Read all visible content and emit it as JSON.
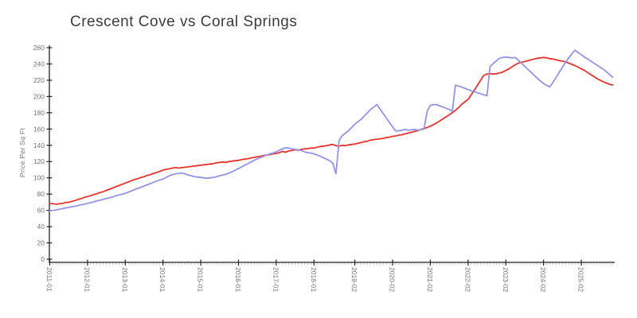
{
  "title": "Crescent Cove vs Coral Springs",
  "chart_data": {
    "type": "line",
    "title": "Crescent Cove vs Coral Springs",
    "xlabel": "",
    "ylabel": "Price Per Sq Ft",
    "ylim": [
      0,
      260
    ],
    "ytick_interval": 20,
    "ytick_labels": [
      "0",
      "20",
      "40",
      "60",
      "80",
      "100",
      "120",
      "140",
      "160",
      "180",
      "200",
      "220",
      "240",
      "260"
    ],
    "x_start": "2011-01",
    "x_frequency": "monthly",
    "n_points": 180,
    "xtick_labels": [
      "2011-01",
      "2012-01",
      "2013-01",
      "2014-01",
      "2015-01",
      "2016-01",
      "2017-01",
      "2018-01",
      "2019-02",
      "2020-02",
      "2021-02",
      "2022-02",
      "2023-02",
      "2024-02",
      "2025-02"
    ],
    "xtick_month_index": [
      0,
      12,
      24,
      36,
      48,
      60,
      72,
      84,
      97,
      109,
      121,
      133,
      145,
      157,
      169
    ],
    "grid": false,
    "legend": "none",
    "style": "xkcd-sketch",
    "axis_color": "#222222",
    "tick_label_color": "#757575",
    "series": [
      {
        "name": "Crescent Cove",
        "color": "#e8342c",
        "values": [
          68.5,
          68,
          67.5,
          68,
          68.5,
          69.5,
          70,
          71,
          72,
          73.5,
          74.5,
          76,
          77,
          78,
          79.5,
          80.5,
          82,
          83,
          84.5,
          86,
          87.5,
          89,
          90.5,
          92,
          93.5,
          95,
          96.5,
          98,
          99,
          100.5,
          101.5,
          103,
          104,
          105.5,
          106.5,
          108,
          109.5,
          110.5,
          111,
          112,
          112.5,
          112,
          112.5,
          113,
          113.5,
          114,
          114.5,
          115,
          115.5,
          116,
          116.5,
          117,
          117.5,
          118.5,
          119,
          119.5,
          119,
          120,
          120.5,
          121,
          121.5,
          122.5,
          123,
          123.5,
          124.5,
          125,
          126,
          126.5,
          127.5,
          128,
          128.5,
          129.5,
          130,
          131,
          132.5,
          131.5,
          133,
          133.5,
          134.5,
          134,
          135,
          135.5,
          136,
          136.5,
          136.5,
          137.5,
          138.5,
          139,
          139.5,
          140.5,
          141,
          139.5,
          139,
          140,
          139.5,
          140.5,
          141,
          141.5,
          142.5,
          143.5,
          144.5,
          145,
          146.5,
          147,
          147.5,
          148,
          148.5,
          149.5,
          150,
          151,
          151.5,
          152.5,
          153,
          154,
          155,
          156,
          157,
          158,
          159.5,
          160.5,
          162,
          163.5,
          165.5,
          167.5,
          170,
          172.5,
          175,
          177.5,
          180,
          183,
          186.5,
          190.5,
          193.5,
          196.5,
          202,
          208,
          214,
          220,
          226,
          227.5,
          228,
          227.5,
          228,
          229,
          230,
          232,
          234,
          236.5,
          239,
          241,
          242,
          243,
          244,
          245,
          246,
          247,
          247.5,
          248,
          247.5,
          246.5,
          246,
          245,
          244,
          243.5,
          242.5,
          241,
          239.5,
          238,
          236,
          234,
          232,
          229.5,
          227,
          224.5,
          222,
          220,
          218,
          216.5,
          215,
          214
        ]
      },
      {
        "name": "Coral Springs",
        "color": "#9494e9",
        "values": [
          59.5,
          60,
          60.5,
          61.5,
          62,
          63,
          63.5,
          64.5,
          65,
          66,
          67,
          67.5,
          68.5,
          69.5,
          70.5,
          71.5,
          72.5,
          73.5,
          74.5,
          75.5,
          76.5,
          78,
          79,
          80,
          81,
          82.5,
          84,
          85.5,
          87,
          88.5,
          90,
          91.5,
          93,
          94.5,
          96,
          97.5,
          98.5,
          100.5,
          102.5,
          104,
          105,
          105.5,
          106,
          105,
          103.5,
          102.5,
          101.5,
          101,
          100.5,
          100,
          99.5,
          100,
          100.5,
          101.5,
          102.5,
          103.5,
          104.5,
          106,
          107.5,
          109.5,
          111.5,
          113.5,
          115.5,
          117.5,
          119.5,
          121.5,
          123.5,
          125,
          126.5,
          128,
          129.5,
          130.5,
          132,
          134,
          135.5,
          137,
          136.5,
          135.5,
          135,
          134.5,
          133.5,
          132,
          131,
          130.5,
          129.5,
          128,
          126.5,
          124.5,
          123,
          121,
          118,
          105,
          146,
          152,
          155,
          158,
          162,
          166,
          169,
          172,
          176,
          180,
          184,
          187,
          190,
          184.5,
          179,
          173.5,
          168,
          162.5,
          157.5,
          158,
          158.5,
          159.5,
          158.5,
          159,
          159.5,
          158.5,
          159,
          160,
          182,
          189,
          190,
          190,
          188.5,
          187,
          185.5,
          184,
          182,
          214,
          213,
          211.5,
          210,
          208.5,
          207,
          206,
          204.5,
          203.5,
          202,
          201,
          237,
          240.5,
          244,
          247,
          248,
          248.5,
          248,
          247.5,
          248,
          244.5,
          241,
          237,
          233.5,
          230,
          226,
          222.5,
          219,
          216,
          213.5,
          212,
          217.5,
          223.5,
          230,
          236,
          242,
          247.5,
          252.5,
          257,
          254,
          251.5,
          248.5,
          246,
          243.5,
          241,
          238.5,
          236,
          233.5,
          230.5,
          227,
          223.5
        ]
      }
    ]
  }
}
